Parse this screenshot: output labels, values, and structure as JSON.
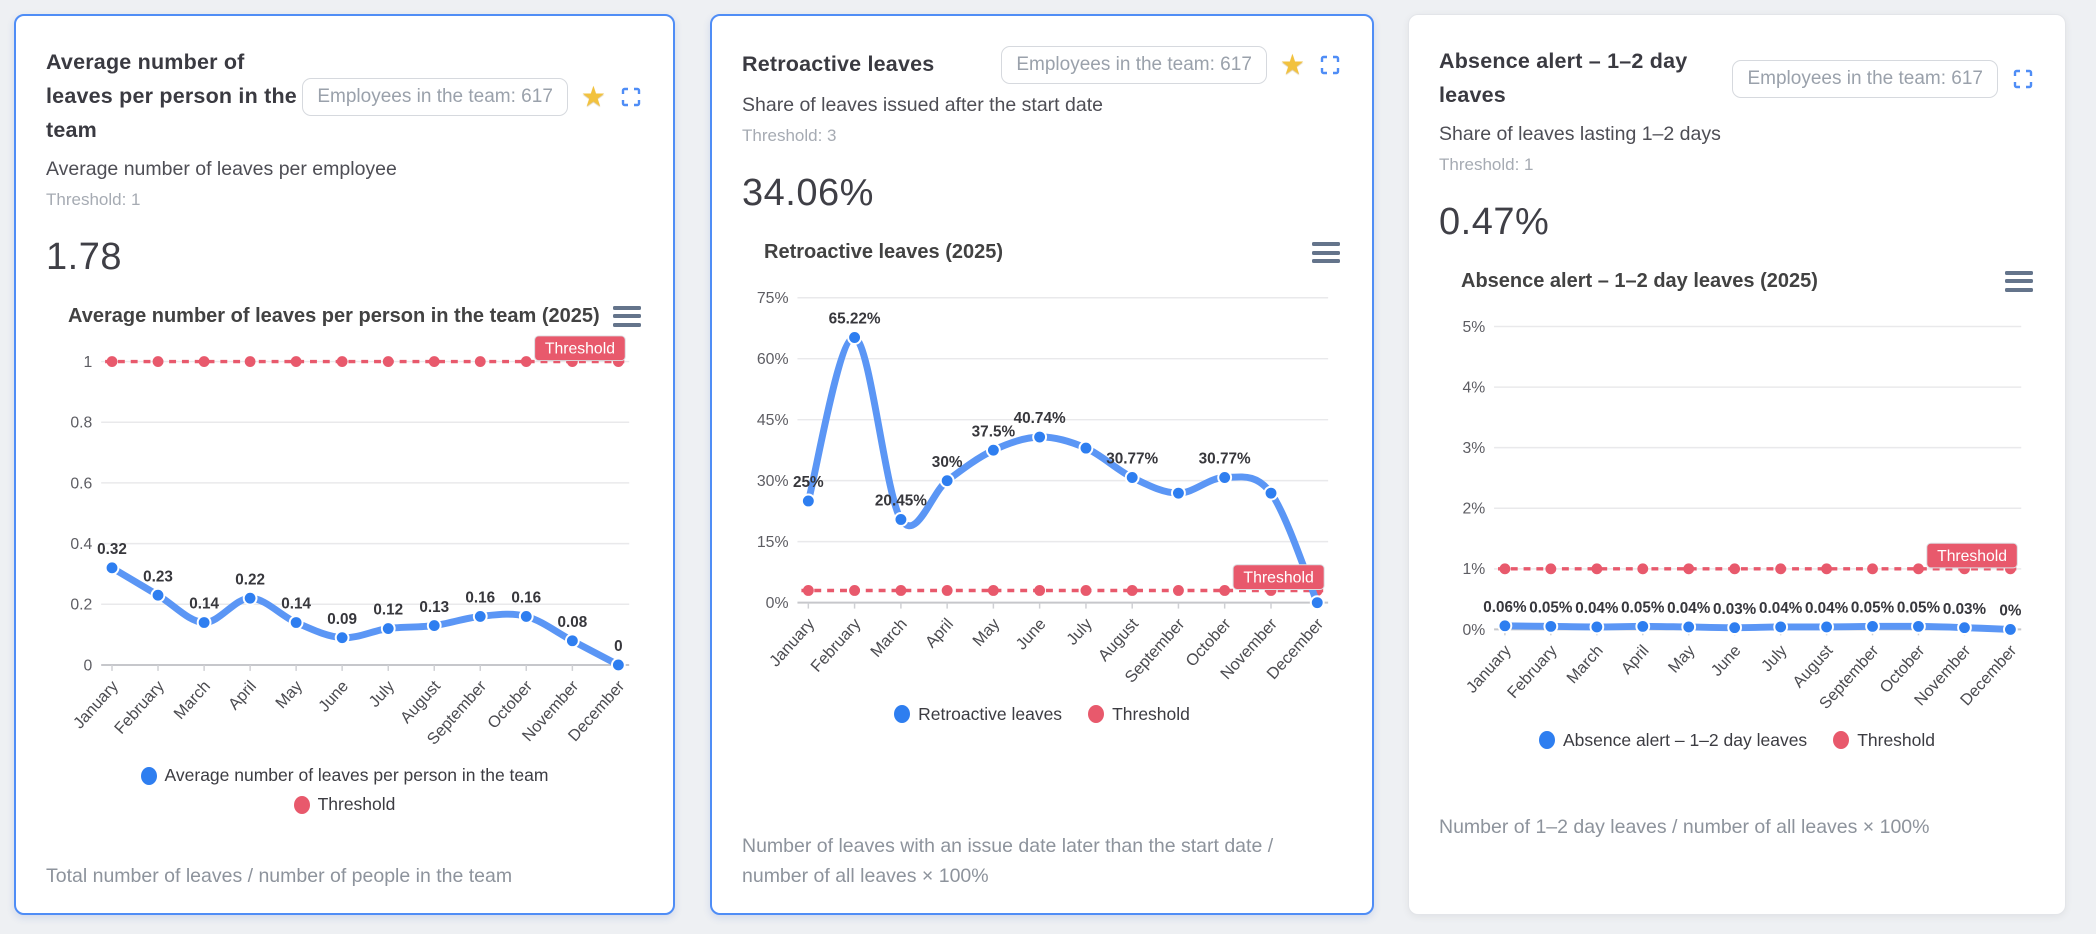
{
  "ui": {
    "star_icon": "★",
    "expand_icon": "fullscreen-corners",
    "menu_icon": "hamburger",
    "background": "#eef0f3",
    "active_card_border": "#4f8df6"
  },
  "cards": [
    {
      "title": "Average number of leaves per person in the team",
      "badge": "Employees in the team: 617",
      "starred": true,
      "subtitle": "Average number of leaves per employee",
      "threshold_note": "Threshold: 1",
      "value": "1.78",
      "footer": "Total number of leaves / number of people in the team",
      "chart_data": {
        "type": "line",
        "title": "Average number of leaves per person in the team (2025)",
        "categories": [
          "January",
          "February",
          "March",
          "April",
          "May",
          "June",
          "July",
          "August",
          "September",
          "October",
          "November",
          "December"
        ],
        "series": [
          {
            "name": "Average number of leaves per person in the team",
            "color": "#5b96f5",
            "point_color": "#2e7ef0",
            "values": [
              0.32,
              0.23,
              0.14,
              0.22,
              0.14,
              0.09,
              0.12,
              0.13,
              0.16,
              0.16,
              0.08,
              0
            ]
          }
        ],
        "point_labels": [
          "0.32",
          "0.23",
          "0.14",
          "0.22",
          "0.14",
          "0.09",
          "0.12",
          "0.13",
          "0.16",
          "0.16",
          "0.08",
          "0"
        ],
        "threshold": {
          "name": "Threshold",
          "badge": "Threshold",
          "value": 1,
          "color": "#e8596c"
        },
        "ylim": [
          0,
          1
        ],
        "yticks": [
          0,
          0.2,
          0.4,
          0.6,
          0.8,
          1
        ],
        "ytick_labels": [
          "0",
          "0.2",
          "0.4",
          "0.6",
          "0.8",
          "1"
        ],
        "xlabel": "",
        "ylabel": "",
        "grid": true,
        "legend_position": "bottom"
      }
    },
    {
      "title": "Retroactive leaves",
      "badge": "Employees in the team: 617",
      "starred": true,
      "subtitle": "Share of leaves issued after the start date",
      "threshold_note": "Threshold: 3",
      "value": "34.06%",
      "footer": "Number of leaves with an issue date later than the start date / number of all leaves × 100%",
      "chart_data": {
        "type": "line",
        "title": "Retroactive leaves (2025)",
        "categories": [
          "January",
          "February",
          "March",
          "April",
          "May",
          "June",
          "July",
          "August",
          "September",
          "October",
          "November",
          "December"
        ],
        "series": [
          {
            "name": "Retroactive leaves",
            "color": "#5b96f5",
            "point_color": "#2e7ef0",
            "values": [
              25,
              65.22,
              20.45,
              30,
              37.5,
              40.74,
              38,
              30.77,
              26.92,
              30.77,
              26.92,
              0
            ]
          }
        ],
        "point_labels": [
          "25%",
          "65.22%",
          "20.45%",
          "30%",
          "37.5%",
          "40.74%",
          "",
          "30.77%",
          "",
          "30.77%",
          "",
          ""
        ],
        "threshold": {
          "name": "Threshold",
          "badge": "Threshold",
          "value": 3,
          "color": "#e8596c"
        },
        "ylim": [
          0,
          75
        ],
        "yticks": [
          0,
          15,
          30,
          45,
          60,
          75
        ],
        "ytick_labels": [
          "0%",
          "15%",
          "30%",
          "45%",
          "60%",
          "75%"
        ],
        "xlabel": "",
        "ylabel": "",
        "grid": true,
        "legend_position": "bottom"
      }
    },
    {
      "title": "Absence alert – 1–2 day leaves",
      "badge": "Employees in the team: 617",
      "starred": false,
      "subtitle": "Share of leaves lasting 1–2 days",
      "threshold_note": "Threshold: 1",
      "value": "0.47%",
      "footer": "Number of 1–2 day leaves / number of all leaves × 100%",
      "chart_data": {
        "type": "line",
        "title": "Absence alert – 1–2 day leaves (2025)",
        "categories": [
          "January",
          "February",
          "March",
          "April",
          "May",
          "June",
          "July",
          "August",
          "September",
          "October",
          "November",
          "December"
        ],
        "series": [
          {
            "name": "Absence alert – 1–2 day leaves",
            "color": "#5b96f5",
            "point_color": "#2e7ef0",
            "values": [
              0.06,
              0.05,
              0.04,
              0.05,
              0.04,
              0.03,
              0.04,
              0.04,
              0.05,
              0.05,
              0.03,
              0
            ]
          }
        ],
        "point_labels": [
          "0.06%",
          "0.05%",
          "0.04%",
          "0.05%",
          "0.04%",
          "0.03%",
          "0.04%",
          "0.04%",
          "0.05%",
          "0.05%",
          "0.03%",
          "0%"
        ],
        "threshold": {
          "name": "Threshold",
          "badge": "Threshold",
          "value": 1,
          "color": "#e8596c"
        },
        "ylim": [
          0,
          5
        ],
        "yticks": [
          0,
          1,
          2,
          3,
          4,
          5
        ],
        "ytick_labels": [
          "0%",
          "1%",
          "2%",
          "3%",
          "4%",
          "5%"
        ],
        "xlabel": "",
        "ylabel": "",
        "grid": true,
        "legend_position": "bottom"
      }
    }
  ]
}
